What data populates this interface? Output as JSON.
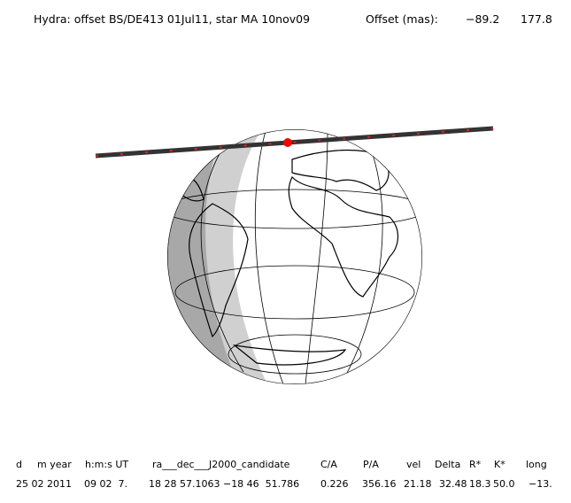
{
  "header": {
    "title": "Hydra: offset BS/DE413 01Jul11, star MA 10nov09",
    "offset_label": "Offset (mas):",
    "offset_x": "−89.2",
    "offset_y": "177.8"
  },
  "table": {
    "columns": [
      "d",
      "m year",
      "h:m:s UT",
      "ra___dec___J2000_candidate",
      "C/A",
      "P/A",
      "vel",
      "Delta",
      "R*",
      "K*",
      "long"
    ],
    "row": [
      "25 02 2011",
      "09 02  7.",
      "18 28 57.1063 −18 46  51.786",
      "0.226",
      "356.16",
      "21.18",
      "32.48",
      "18.3",
      "50.0",
      "−13."
    ]
  }
}
